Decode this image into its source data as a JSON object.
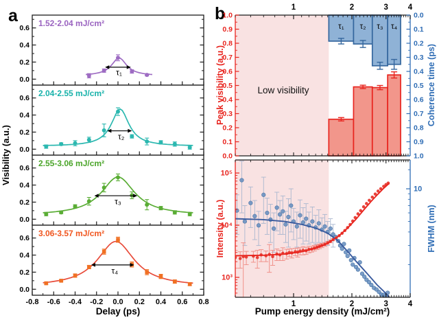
{
  "figure": {
    "panel_a_letter": "a",
    "panel_b_letter": "b"
  },
  "colors": {
    "frame": "#1a1a1a",
    "pink_region": "#f9e2e2",
    "red": "#e8251f",
    "red_bar_fill": "#f2968b",
    "red_scatter": "#e8382f",
    "red_err": "#f0918a",
    "blue_axis": "#2f6db5",
    "blue_bar_fill": "#8fb2d6",
    "blue_bar_edge": "#35679e",
    "blue_scatter": "#6d93c2",
    "blue_curve": "#3a5b9e",
    "blue_err": "#aab7cf"
  },
  "chart_data": [
    {
      "id": "panel-a",
      "type": "line",
      "xlabel": "Delay (ps)",
      "ylabel": "Visibility (a.u.)",
      "xlim": [
        -0.8,
        0.8
      ],
      "x_ticks": [
        -0.8,
        -0.6,
        -0.4,
        -0.2,
        0.0,
        0.2,
        0.4,
        0.6,
        0.8
      ],
      "x_minor_step": 0.1,
      "ylim_per_subplot": [
        -0.07,
        0.75
      ],
      "y_ticks": [
        0.0,
        0.2,
        0.4,
        0.6
      ],
      "y_minor_ticks": [
        0.1,
        0.3,
        0.5,
        0.7
      ],
      "subplots": [
        {
          "label": "1.52-2.04 mJ/cm²",
          "label_color": "#9a63c0",
          "color": "#9e6cc3",
          "curve_color": "#9e6cc3",
          "marker": "circle",
          "x": [
            -0.27,
            -0.13,
            0.0,
            0.13,
            0.27
          ],
          "y": [
            0.04,
            0.1,
            0.25,
            0.09,
            0.05
          ],
          "yerr": [
            0.025,
            0.02,
            0.035,
            0.02,
            0.012
          ],
          "fit": {
            "bg": 0.04,
            "amp": 0.21,
            "x0": 0.01,
            "fwhm": 0.17,
            "range": [
              -0.3,
              0.32
            ]
          },
          "arrow": {
            "y": 0.14,
            "x1": -0.12,
            "x2": 0.12
          },
          "tau": "τ₁",
          "tau_pos": {
            "x": 0.01,
            "y": 0.045
          }
        },
        {
          "label": "2.04-2.55 mJ/cm²",
          "label_color": "#18b2aa",
          "color": "#2cb8b0",
          "curve_color": "#2cb8b0",
          "marker": "circle",
          "x": [
            -0.67,
            -0.53,
            -0.4,
            -0.27,
            -0.13,
            0.0,
            0.13,
            0.27,
            0.4,
            0.53,
            0.67
          ],
          "y": [
            0.03,
            0.06,
            0.07,
            0.11,
            0.22,
            0.44,
            0.15,
            0.09,
            0.08,
            0.06,
            0.02
          ],
          "yerr": [
            0.02,
            0.015,
            0.03,
            0.03,
            0.075,
            0.045,
            0.02,
            0.04,
            0.02,
            0.025,
            0.02
          ],
          "fit": {
            "bg": 0.035,
            "amp": 0.435,
            "x0": 0.02,
            "fwhm": 0.2,
            "range": [
              -0.7,
              0.7
            ]
          },
          "arrow": {
            "y": 0.215,
            "x1": -0.1,
            "x2": 0.13
          },
          "tau": "τ₂",
          "tau_pos": {
            "x": 0.03,
            "y": 0.115
          }
        },
        {
          "label": "2.55-3.06 mJ/cm²",
          "label_color": "#4ba52a",
          "color": "#5aad35",
          "curve_color": "#5aad35",
          "marker": "circle",
          "x": [
            -0.67,
            -0.53,
            -0.4,
            -0.27,
            -0.13,
            0.0,
            0.13,
            0.27,
            0.4,
            0.53,
            0.67
          ],
          "y": [
            0.06,
            0.08,
            0.15,
            0.21,
            0.37,
            0.49,
            0.28,
            0.17,
            0.13,
            0.08,
            0.06
          ],
          "yerr": [
            0.02,
            0.015,
            0.02,
            0.045,
            0.05,
            0.04,
            0.04,
            0.06,
            0.02,
            0.02,
            0.02
          ],
          "fit": {
            "bg": 0.045,
            "amp": 0.45,
            "x0": 0.0,
            "fwhm": 0.38,
            "range": [
              -0.7,
              0.7
            ]
          },
          "arrow": {
            "y": 0.275,
            "x1": -0.22,
            "x2": 0.18
          },
          "tau": "τ₃",
          "tau_pos": {
            "x": 0.0,
            "y": 0.175
          }
        },
        {
          "label": "3.06-3.57 mJ/cm²",
          "label_color": "#f0561f",
          "color": "#f07124",
          "curve_color": "#e84b3a",
          "marker": "square",
          "x": [
            -0.67,
            -0.53,
            -0.4,
            -0.27,
            -0.13,
            0.0,
            0.13,
            0.27,
            0.4,
            0.53,
            0.67
          ],
          "y": [
            0.07,
            0.1,
            0.16,
            0.26,
            0.44,
            0.58,
            0.29,
            0.2,
            0.15,
            0.09,
            0.06
          ],
          "yerr": [
            0.012,
            0.012,
            0.02,
            0.02,
            0.03,
            0.03,
            0.03,
            0.03,
            0.025,
            0.02,
            0.018
          ],
          "fit": {
            "bg": 0.03,
            "amp": 0.53,
            "x0": -0.02,
            "fwhm": 0.42,
            "range": [
              -0.7,
              0.7
            ]
          },
          "arrow": {
            "y": 0.285,
            "x1": -0.25,
            "x2": 0.15
          },
          "tau": "τ₄",
          "tau_pos": {
            "x": -0.03,
            "y": 0.185
          }
        }
      ]
    },
    {
      "id": "panel-b-top",
      "type": "bar",
      "x_scale": "log",
      "xlim": [
        0.5,
        4
      ],
      "x_ticks": [
        1,
        2,
        3,
        4
      ],
      "ylabel_left": "Peak visibility (a.u.)",
      "left_ticks": [
        0.0,
        0.1,
        0.2,
        0.3,
        0.4,
        0.5,
        0.6,
        0.7,
        0.8,
        0.9,
        1.0
      ],
      "ylabel_right": "Coherence time (ps)",
      "right_ticks": [
        0.0,
        0.1,
        0.2,
        0.3,
        0.4,
        0.5,
        0.6,
        0.7,
        0.8,
        0.9,
        1.0
      ],
      "right_axis_inverted": true,
      "region": {
        "label": "Low visibility",
        "x_range": [
          0.5,
          1.52
        ]
      },
      "bins": [
        [
          1.52,
          2.04
        ],
        [
          2.04,
          2.55
        ],
        [
          2.55,
          3.06
        ],
        [
          3.06,
          3.57
        ]
      ],
      "series": [
        {
          "name": "Peak visibility",
          "axis": "left",
          "values": [
            0.26,
            0.49,
            0.485,
            0.575
          ],
          "errors": [
            0.012,
            0.012,
            0.015,
            0.022
          ]
        },
        {
          "name": "Coherence time",
          "axis": "right",
          "values": [
            0.185,
            0.205,
            0.36,
            0.35
          ],
          "errors": [
            0.02,
            0.025,
            0.025,
            0.035
          ],
          "labels": [
            "τ₁",
            "τ₂",
            "τ₃",
            "τ₄"
          ]
        }
      ]
    },
    {
      "id": "panel-b-bottom",
      "type": "scatter",
      "xlabel": "Pump energy density (mJ/cm²)",
      "x_scale": "log",
      "xlim": [
        0.5,
        4
      ],
      "x_ticks": [
        1,
        2,
        3,
        4
      ],
      "ylabel_left": "Intensity (a.u.)",
      "left_scale": "log",
      "left_tick_labels": [
        "10³",
        "10⁴",
        "10⁵"
      ],
      "left_tick_values": [
        1000,
        10000,
        100000
      ],
      "left_range": [
        400,
        178000
      ],
      "ylabel_right": "FWHM (nm)",
      "right_scale": "log",
      "right_tick_labels": [
        "10"
      ],
      "right_tick_values": [
        10
      ],
      "right_range": [
        1,
        18.5
      ],
      "region": {
        "x_range": [
          0.5,
          1.52
        ]
      },
      "series": [
        {
          "name": "Intensity",
          "axis": "left",
          "x": [
            0.5,
            0.53,
            0.55,
            0.57,
            0.62,
            0.65,
            0.68,
            0.72,
            0.75,
            0.78,
            0.82,
            0.85,
            0.88,
            0.92,
            0.95,
            0.98,
            1.02,
            1.05,
            1.08,
            1.12,
            1.16,
            1.2,
            1.24,
            1.28,
            1.32,
            1.36,
            1.4,
            1.45,
            1.5,
            1.55,
            1.6,
            1.66,
            1.72,
            1.78,
            1.84,
            1.9,
            1.96,
            2.02,
            2.08,
            2.15,
            2.22,
            2.3,
            2.38,
            2.46,
            2.55,
            2.64,
            2.73,
            2.82,
            2.92,
            3.0,
            3.08
          ],
          "y": [
            2400,
            2300,
            2500,
            2450,
            2550,
            2400,
            2700,
            2600,
            2750,
            2500,
            2800,
            2700,
            2900,
            2850,
            3000,
            2950,
            3100,
            3050,
            3200,
            3300,
            3250,
            3450,
            3500,
            3650,
            3800,
            3950,
            4100,
            4300,
            4600,
            4900,
            5300,
            5700,
            6300,
            7000,
            7900,
            9000,
            10300,
            12000,
            14000,
            16500,
            19000,
            22500,
            26000,
            30000,
            34500,
            39500,
            45000,
            50000,
            55500,
            60000,
            64000
          ],
          "yerr": [
            900,
            800,
            2100,
            700,
            600,
            900,
            700,
            600,
            1500,
            800,
            700,
            600,
            800,
            600,
            500,
            600,
            500,
            600,
            500,
            600,
            500,
            500,
            450,
            450,
            400,
            400,
            380,
            350,
            320,
            300,
            280,
            0,
            0,
            0,
            0,
            0,
            0,
            0,
            0,
            0,
            0,
            0,
            0,
            0,
            0,
            0,
            0,
            0,
            0,
            0,
            0
          ],
          "curve_x": [
            0.5,
            0.7,
            0.9,
            1.1,
            1.3,
            1.5,
            1.7,
            1.9,
            2.1,
            2.3,
            2.5,
            2.7,
            2.9,
            3.05,
            3.12
          ],
          "curve_y": [
            2600,
            2650,
            2800,
            3100,
            3600,
            4500,
            6100,
            8800,
            13000,
            19500,
            28000,
            38000,
            50000,
            59000,
            63000
          ]
        },
        {
          "name": "FWHM",
          "axis": "right",
          "x": [
            0.51,
            0.54,
            0.56,
            0.6,
            0.63,
            0.66,
            0.7,
            0.73,
            0.76,
            0.79,
            0.82,
            0.85,
            0.88,
            0.91,
            0.94,
            0.97,
            1.0,
            1.04,
            1.08,
            1.12,
            1.16,
            1.2,
            1.25,
            1.3,
            1.35,
            1.4,
            1.45,
            1.5,
            1.55,
            1.6,
            1.65,
            1.7,
            1.74,
            1.78,
            1.82,
            1.86,
            1.9,
            1.94,
            1.98,
            2.02,
            2.06,
            2.1,
            2.15,
            2.2,
            2.26,
            2.32,
            2.38,
            2.45,
            2.52,
            2.6,
            2.68,
            2.76,
            2.84,
            2.92,
            3.0,
            3.06
          ],
          "y": [
            6.3,
            12.0,
            5.0,
            7.4,
            5.6,
            4.6,
            8.8,
            6.0,
            5.2,
            4.3,
            6.7,
            5.8,
            6.2,
            4.7,
            5.5,
            7.0,
            5.0,
            4.5,
            5.7,
            4.9,
            5.3,
            4.6,
            5.0,
            4.4,
            4.8,
            4.2,
            4.5,
            4.0,
            4.3,
            3.8,
            3.6,
            3.3,
            3.0,
            2.8,
            3.1,
            2.6,
            2.4,
            2.7,
            2.2,
            2.0,
            2.3,
            1.9,
            1.8,
            2.1,
            1.65,
            1.55,
            1.45,
            1.38,
            1.3,
            1.22,
            1.18,
            1.12,
            1.06,
            1.05,
            1.02,
            1.1
          ],
          "yerr": [
            2.5,
            6.0,
            2.0,
            3.0,
            2.2,
            1.6,
            4.0,
            2.2,
            2.0,
            1.7,
            2.6,
            2.0,
            2.4,
            1.5,
            2.6,
            3.0,
            1.6,
            1.6,
            2.2,
            1.8,
            2.0,
            1.5,
            1.8,
            1.3,
            1.6,
            1.2,
            1.3,
            1.0,
            1.0,
            0.9,
            0,
            0,
            0,
            0,
            0,
            0,
            0,
            0,
            0,
            0,
            0,
            0,
            0,
            0,
            0,
            0,
            0,
            0,
            0,
            0,
            0,
            0,
            0,
            0,
            0,
            0
          ],
          "curve_x": [
            0.5,
            0.7,
            0.9,
            1.1,
            1.3,
            1.5,
            1.7,
            1.9,
            2.1,
            2.3,
            2.5,
            2.7,
            2.9,
            3.05,
            3.12
          ],
          "curve_y": [
            5.3,
            5.2,
            5.0,
            4.7,
            4.35,
            3.9,
            3.3,
            2.65,
            2.15,
            1.8,
            1.52,
            1.3,
            1.15,
            1.05,
            1.0
          ]
        }
      ]
    }
  ]
}
